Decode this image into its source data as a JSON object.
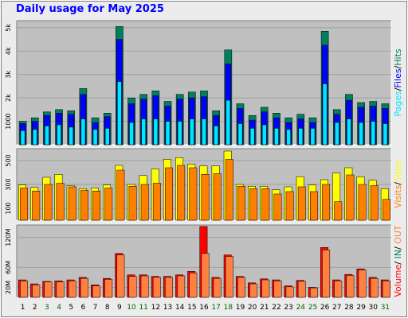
{
  "title": "Daily usage for May 2025",
  "days": [
    "1",
    "2",
    "3",
    "4",
    "5",
    "6",
    "7",
    "8",
    "9",
    "10",
    "11",
    "12",
    "13",
    "14",
    "15",
    "16",
    "17",
    "18",
    "19",
    "20",
    "21",
    "22",
    "23",
    "24",
    "25",
    "26",
    "27",
    "28",
    "29",
    "30",
    "31"
  ],
  "weekend_days": [
    "3",
    "4",
    "10",
    "11",
    "17",
    "18",
    "24",
    "25",
    "31"
  ],
  "colors": {
    "hits": "#00805c",
    "files": "#0000ff",
    "pages": "#00e6ff",
    "visits": "#ffff00",
    "sites": "#ff8000",
    "kbin": "#ff0000",
    "kbout": "#ff8040",
    "plot_bg": "#c0c0c0",
    "frame_bg": "#ececec",
    "weekend_label": "#006400"
  },
  "chart_data": [
    {
      "type": "bar",
      "ylabel_parts": [
        "Pages",
        "/",
        "Files",
        "/",
        "Hits"
      ],
      "yticks": [
        "1000",
        "2k",
        "3k",
        "4k",
        "5k"
      ],
      "ylim": [
        0,
        5300
      ],
      "series": [
        {
          "name": "Hits",
          "values": [
            1000,
            1150,
            1400,
            1500,
            1450,
            2400,
            1150,
            1350,
            5050,
            2000,
            2150,
            2300,
            1850,
            2150,
            2250,
            2300,
            1450,
            4050,
            1750,
            1250,
            1600,
            1350,
            1150,
            1300,
            1150,
            4850,
            1500,
            2150,
            1800,
            1850,
            1750
          ]
        },
        {
          "name": "Files",
          "values": [
            900,
            1000,
            1250,
            1350,
            1300,
            2150,
            950,
            1200,
            4500,
            1750,
            1950,
            2100,
            1650,
            1950,
            2000,
            2050,
            1250,
            3450,
            1550,
            1050,
            1400,
            1150,
            950,
            1100,
            950,
            4250,
            1300,
            1900,
            1600,
            1650,
            1550
          ]
        },
        {
          "name": "Pages",
          "values": [
            600,
            650,
            800,
            850,
            750,
            1100,
            650,
            700,
            2700,
            950,
            1100,
            1100,
            1000,
            1000,
            1100,
            1100,
            800,
            1900,
            900,
            700,
            850,
            700,
            650,
            700,
            700,
            2600,
            950,
            1100,
            950,
            1000,
            900
          ]
        }
      ]
    },
    {
      "type": "bar",
      "ylabel_parts": [
        "Visits",
        "/",
        "Sites"
      ],
      "yticks": [
        "100",
        "300",
        "500"
      ],
      "ylim": [
        0,
        600
      ],
      "series": [
        {
          "name": "Visits",
          "values": [
            295,
            275,
            360,
            385,
            290,
            265,
            270,
            295,
            460,
            300,
            375,
            430,
            510,
            525,
            470,
            455,
            455,
            580,
            300,
            285,
            285,
            255,
            280,
            365,
            295,
            340,
            395,
            440,
            365,
            335,
            265
          ]
        },
        {
          "name": "Sites",
          "values": [
            270,
            245,
            300,
            310,
            280,
            250,
            245,
            270,
            420,
            285,
            300,
            310,
            440,
            460,
            440,
            385,
            390,
            510,
            285,
            265,
            265,
            220,
            240,
            280,
            240,
            300,
            155,
            380,
            300,
            290,
            175
          ]
        }
      ]
    },
    {
      "type": "bar",
      "ylabel_parts": [
        "Volume",
        "/",
        "IN",
        "/",
        "OUT"
      ],
      "yticks": [
        "20M",
        "60M",
        "120M"
      ],
      "ylim": [
        0,
        145
      ],
      "series": [
        {
          "name": "IN",
          "values": [
            35,
            27,
            32,
            33,
            35,
            40,
            25,
            38,
            88,
            45,
            45,
            42,
            42,
            45,
            52,
            142,
            40,
            85,
            42,
            29,
            37,
            35,
            23,
            34,
            20,
            100,
            35,
            46,
            57,
            40,
            35
          ]
        },
        {
          "name": "OUT",
          "values": [
            33,
            25,
            31,
            31,
            33,
            38,
            23,
            36,
            85,
            42,
            43,
            40,
            40,
            43,
            49,
            88,
            38,
            82,
            40,
            27,
            35,
            33,
            21,
            32,
            19,
            95,
            33,
            44,
            55,
            38,
            33
          ]
        }
      ]
    }
  ]
}
